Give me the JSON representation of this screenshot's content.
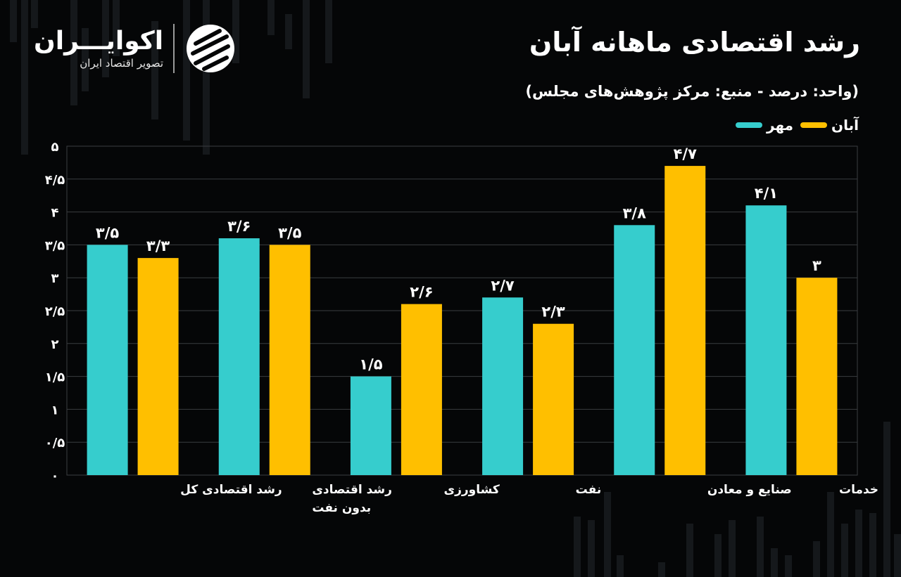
{
  "header": {
    "title": "رشد اقتصادی ماهانه آبان",
    "subtitle": "(واحد: درصد - منبع: مرکز پژوهش‌های مجلس)"
  },
  "logo": {
    "name": "اکوایـــران",
    "tagline": "تصویر اقتصاد ایران",
    "icon": "ecoiran-logo-icon"
  },
  "legend": {
    "items": [
      {
        "label": "مهر",
        "color": "#36cdcd"
      },
      {
        "label": "آبان",
        "color": "#ffbf00"
      }
    ]
  },
  "colors": {
    "background": "#050607",
    "mehr": "#36cdcd",
    "aban": "#ffbf00",
    "grid": "#3a3d40"
  },
  "chart_data": {
    "type": "bar",
    "title": "رشد اقتصادی ماهانه آبان",
    "categories": [
      [
        "رشد اقتصادی کل"
      ],
      [
        "رشد اقتصادی",
        "بدون نفت"
      ],
      [
        "کشاورزی"
      ],
      [
        "نفت"
      ],
      [
        "صنایع و معادن"
      ],
      [
        "خدمات"
      ]
    ],
    "series": [
      {
        "name": "مهر",
        "values": [
          3.5,
          3.6,
          1.5,
          2.7,
          3.8,
          4.1
        ],
        "labels": [
          "۳/۵",
          "۳/۶",
          "۱/۵",
          "۲/۷",
          "۳/۸",
          "۴/۱"
        ]
      },
      {
        "name": "آبان",
        "values": [
          3.3,
          3.5,
          2.6,
          2.3,
          4.7,
          3
        ],
        "labels": [
          "۳/۳",
          "۳/۵",
          "۲/۶",
          "۲/۳",
          "۴/۷",
          "۳"
        ]
      }
    ],
    "ylim": [
      0,
      5
    ],
    "yticks": [
      0,
      0.5,
      1,
      1.5,
      2,
      2.5,
      3,
      3.5,
      4,
      4.5,
      5
    ],
    "ytick_labels": [
      "۰",
      "۰/۵",
      "۱",
      "۱/۵",
      "۲",
      "۲/۵",
      "۳",
      "۳/۵",
      "۴",
      "۴/۵",
      "۵"
    ],
    "grid": true,
    "legend_position": "top-right"
  }
}
